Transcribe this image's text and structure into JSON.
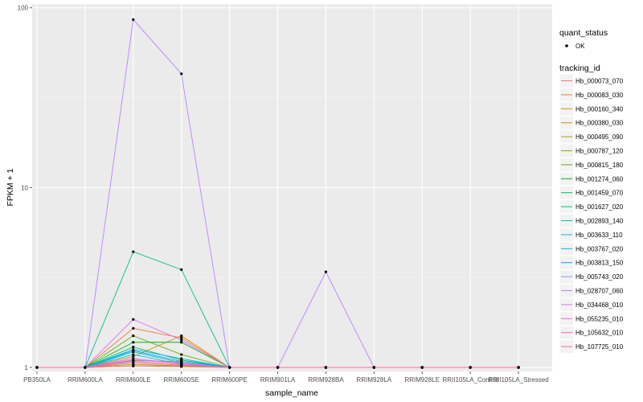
{
  "chart_data": {
    "type": "line",
    "xlabel": "sample_name",
    "ylabel": "FPKM + 1",
    "y_scale": "log10",
    "ylim": [
      0.95,
      105
    ],
    "y_ticks": [
      1,
      10,
      100
    ],
    "y_tick_labels": [
      "1",
      "10",
      "100"
    ],
    "grid": true,
    "legend_position": "right",
    "categories": [
      "PB350LA",
      "RRIM600LA",
      "RRIM600LE",
      "RRIM600SE",
      "RRIM600PE",
      "RRIM901LA",
      "RRIM928BA",
      "RRIM928LA",
      "RRIM928LE",
      "RRII105LA_Control",
      "RRII105LA_Stressed"
    ],
    "shape_legend": {
      "title": "quant_status",
      "entries": [
        "OK"
      ]
    },
    "color_legend_title": "tracking_id",
    "series": [
      {
        "name": "Hb_000073_070",
        "color": "#F8766D",
        "values": [
          1,
          1,
          1.06,
          1.03,
          1,
          1,
          1,
          1,
          1,
          1,
          1
        ]
      },
      {
        "name": "Hb_000083_030",
        "color": "#EC8239",
        "values": [
          1,
          1,
          1.65,
          1.46,
          1,
          1,
          1,
          1,
          1,
          1,
          1
        ]
      },
      {
        "name": "Hb_000160_340",
        "color": "#DB8E00",
        "values": [
          1,
          1,
          1.15,
          1.5,
          1,
          1,
          1,
          1,
          1,
          1,
          1
        ]
      },
      {
        "name": "Hb_000380_030",
        "color": "#C79800",
        "values": [
          1,
          1,
          1.09,
          1.08,
          1,
          1,
          1,
          1,
          1,
          1,
          1
        ]
      },
      {
        "name": "Hb_000495_090",
        "color": "#AEA200",
        "values": [
          1,
          1,
          1.04,
          1.02,
          1,
          1,
          1,
          1,
          1,
          1,
          1
        ]
      },
      {
        "name": "Hb_000787_120",
        "color": "#8FAA00",
        "values": [
          1,
          1,
          1.02,
          1.01,
          1,
          1,
          1,
          1,
          1,
          1,
          1
        ]
      },
      {
        "name": "Hb_000815_180",
        "color": "#64B200",
        "values": [
          1,
          1,
          1.5,
          1.18,
          1,
          1,
          1,
          1,
          1,
          1,
          1
        ]
      },
      {
        "name": "Hb_001274_060",
        "color": "#00B81B",
        "values": [
          1,
          1,
          1.38,
          1.38,
          1,
          1,
          1,
          1,
          1,
          1,
          1
        ]
      },
      {
        "name": "Hb_001459_070",
        "color": "#00BD5C",
        "values": [
          1,
          1,
          1.3,
          1.1,
          1,
          1,
          1,
          1,
          1,
          1,
          1
        ]
      },
      {
        "name": "Hb_001627_020",
        "color": "#00C08E",
        "values": [
          1,
          1,
          4.4,
          3.5,
          1,
          1,
          1,
          1,
          1,
          1,
          1
        ]
      },
      {
        "name": "Hb_002893_140",
        "color": "#00C1B7",
        "values": [
          1,
          1,
          1.22,
          1.06,
          1,
          1,
          1,
          1,
          1,
          1,
          1
        ]
      },
      {
        "name": "Hb_003633_110",
        "color": "#00BDDC",
        "values": [
          1,
          1,
          1.18,
          1.04,
          1,
          1,
          1,
          1,
          1,
          1,
          1
        ]
      },
      {
        "name": "Hb_003767_020",
        "color": "#00B4F0",
        "values": [
          1,
          1,
          1.26,
          1.12,
          1,
          1,
          1,
          1,
          1,
          1,
          1
        ]
      },
      {
        "name": "Hb_003813_150",
        "color": "#00A5FF",
        "values": [
          1,
          1,
          1.24,
          1.08,
          1,
          1,
          1,
          1,
          1,
          1,
          1
        ]
      },
      {
        "name": "Hb_005743_020",
        "color": "#7F96FF",
        "values": [
          1,
          1,
          1.1,
          1.06,
          1,
          1,
          1,
          1,
          1,
          1,
          1
        ]
      },
      {
        "name": "Hb_028707_060",
        "color": "#BC81FF",
        "values": [
          1,
          1,
          86,
          43,
          1,
          1,
          3.4,
          1,
          1,
          1,
          1
        ]
      },
      {
        "name": "Hb_034468_010",
        "color": "#E26EF7",
        "values": [
          1,
          1,
          1.85,
          1.42,
          1,
          1,
          1,
          1,
          1,
          1,
          1
        ]
      },
      {
        "name": "Hb_055235_010",
        "color": "#F863DF",
        "values": [
          1,
          1,
          1.12,
          1.05,
          1,
          1,
          1,
          1,
          1,
          1,
          1
        ]
      },
      {
        "name": "Hb_105632_010",
        "color": "#FF62BF",
        "values": [
          1,
          1,
          1.08,
          1.04,
          1,
          1,
          1,
          1,
          1,
          1,
          1
        ]
      },
      {
        "name": "Hb_107725_010",
        "color": "#FF6A98",
        "values": [
          1,
          1,
          1.02,
          1.02,
          1,
          1,
          1,
          1,
          1,
          1,
          1
        ]
      }
    ]
  }
}
